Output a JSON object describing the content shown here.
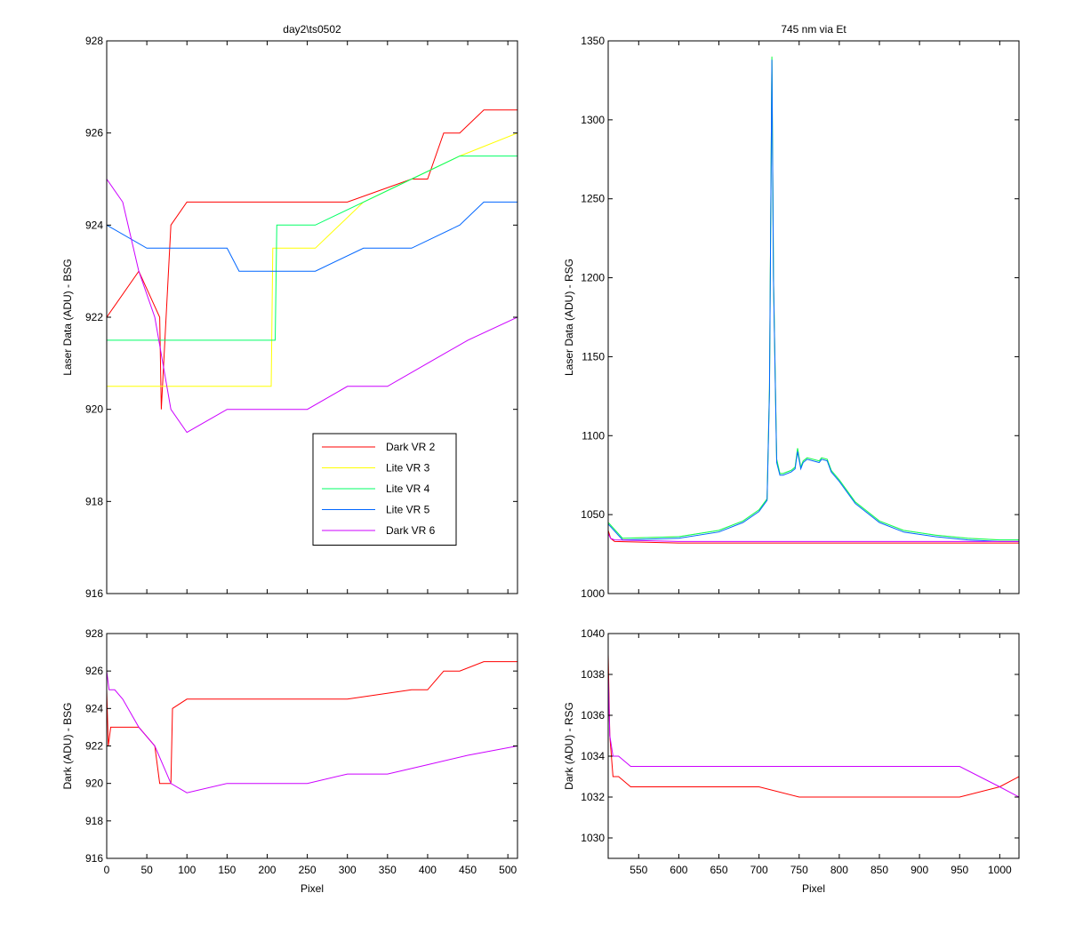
{
  "chart_data": [
    {
      "type": "line",
      "title": "day2\\ts0502",
      "xlabel": "",
      "ylabel": "Laser Data (ADU) - BSG",
      "xlim": [
        0,
        512
      ],
      "ylim": [
        916,
        928
      ],
      "xticks": [
        0,
        50,
        100,
        150,
        200,
        250,
        300,
        350,
        400,
        450,
        500
      ],
      "yticks": [
        916,
        918,
        920,
        922,
        924,
        926,
        928
      ],
      "show_xtick_labels": false,
      "legend": {
        "placement": "lower-center"
      },
      "series": [
        {
          "name": "Dark VR 2",
          "color": "#ff0000",
          "x": [
            0,
            40,
            66,
            68,
            80,
            100,
            200,
            300,
            380,
            400,
            420,
            440,
            470,
            512
          ],
          "y": [
            922,
            923,
            922,
            920,
            924,
            924.5,
            924.5,
            924.5,
            925,
            925,
            926,
            926,
            926.5,
            926.5
          ]
        },
        {
          "name": "Lite VR 3",
          "color": "#ffff00",
          "x": [
            0,
            60,
            100,
            150,
            205,
            207,
            260,
            320,
            380,
            440,
            512
          ],
          "y": [
            920.5,
            920.5,
            920.5,
            920.5,
            920.5,
            923.5,
            923.5,
            924.5,
            925,
            925.5,
            926
          ]
        },
        {
          "name": "Lite VR 4",
          "color": "#00ff66",
          "x": [
            0,
            60,
            100,
            150,
            210,
            212,
            260,
            320,
            380,
            440,
            512
          ],
          "y": [
            921.5,
            921.5,
            921.5,
            921.5,
            921.5,
            924,
            924,
            924.5,
            925,
            925.5,
            925.5
          ]
        },
        {
          "name": "Lite VR 5",
          "color": "#0066ff",
          "x": [
            0,
            50,
            90,
            150,
            165,
            210,
            260,
            320,
            380,
            440,
            470,
            512
          ],
          "y": [
            924,
            923.5,
            923.5,
            923.5,
            923,
            923,
            923,
            923.5,
            923.5,
            924,
            924.5,
            924.5
          ]
        },
        {
          "name": "Dark VR 6",
          "color": "#cc00ff",
          "x": [
            0,
            20,
            40,
            60,
            80,
            100,
            150,
            200,
            250,
            300,
            350,
            400,
            450,
            512
          ],
          "y": [
            925,
            924.5,
            923,
            922,
            920,
            919.5,
            920,
            920,
            920,
            920.5,
            920.5,
            921,
            921.5,
            922
          ]
        }
      ]
    },
    {
      "type": "line",
      "title": "745 nm via Et",
      "xlabel": "",
      "ylabel": "Laser Data (ADU) - RSG",
      "xlim": [
        512,
        1024
      ],
      "ylim": [
        1000,
        1350
      ],
      "xticks": [
        550,
        600,
        650,
        700,
        750,
        800,
        850,
        900,
        950,
        1000
      ],
      "yticks": [
        1000,
        1050,
        1100,
        1150,
        1200,
        1250,
        1300,
        1350
      ],
      "show_xtick_labels": false,
      "series": [
        {
          "name": "Dark VR 2",
          "color": "#ff0000",
          "x": [
            512,
            515,
            520,
            600,
            700,
            800,
            900,
            1000,
            1024
          ],
          "y": [
            1040,
            1035,
            1033,
            1032,
            1032,
            1032,
            1032,
            1032,
            1032
          ]
        },
        {
          "name": "Lite VR 3",
          "color": "#ffff00",
          "x": [
            512,
            530,
            600,
            650,
            680,
            700,
            710,
            713,
            716,
            718,
            722,
            726,
            730,
            740,
            745,
            748,
            752,
            755,
            760,
            775,
            778,
            785,
            790,
            800,
            820,
            850,
            880,
            920,
            960,
            1000,
            1024
          ],
          "y": [
            1045,
            1035,
            1036,
            1040,
            1046,
            1053,
            1060,
            1130,
            1340,
            1200,
            1085,
            1076,
            1076,
            1078,
            1080,
            1092,
            1080,
            1084,
            1086,
            1084,
            1086,
            1085,
            1078,
            1072,
            1058,
            1046,
            1040,
            1037,
            1035,
            1034,
            1034
          ]
        },
        {
          "name": "Lite VR 4",
          "color": "#00ff66",
          "x": [
            512,
            530,
            600,
            650,
            680,
            700,
            710,
            713,
            716,
            718,
            722,
            726,
            730,
            740,
            745,
            748,
            752,
            755,
            760,
            775,
            778,
            785,
            790,
            800,
            820,
            850,
            880,
            920,
            960,
            1000,
            1024
          ],
          "y": [
            1045,
            1035,
            1036,
            1040,
            1046,
            1053,
            1060,
            1130,
            1340,
            1200,
            1085,
            1076,
            1076,
            1078,
            1080,
            1092,
            1080,
            1084,
            1086,
            1084,
            1086,
            1085,
            1078,
            1072,
            1058,
            1046,
            1040,
            1037,
            1035,
            1034,
            1034
          ]
        },
        {
          "name": "Lite VR 5",
          "color": "#0066ff",
          "x": [
            512,
            530,
            600,
            650,
            680,
            700,
            710,
            713,
            716,
            718,
            722,
            726,
            730,
            740,
            745,
            748,
            752,
            755,
            760,
            775,
            778,
            785,
            790,
            800,
            820,
            850,
            880,
            920,
            960,
            1000,
            1024
          ],
          "y": [
            1044,
            1034,
            1035,
            1039,
            1045,
            1052,
            1059,
            1128,
            1338,
            1198,
            1083,
            1075,
            1075,
            1077,
            1079,
            1090,
            1079,
            1083,
            1085,
            1083,
            1085,
            1084,
            1077,
            1071,
            1057,
            1045,
            1039,
            1036,
            1034,
            1033,
            1033
          ]
        },
        {
          "name": "Dark VR 6",
          "color": "#cc00ff",
          "x": [
            512,
            515,
            520,
            600,
            700,
            800,
            900,
            1000,
            1024
          ],
          "y": [
            1038,
            1035,
            1034,
            1033,
            1033,
            1033,
            1033,
            1033,
            1033
          ]
        }
      ]
    },
    {
      "type": "line",
      "title": "",
      "xlabel": "Pixel",
      "ylabel": "Dark (ADU) - BSG",
      "xlim": [
        0,
        512
      ],
      "ylim": [
        916,
        928
      ],
      "xticks": [
        0,
        50,
        100,
        150,
        200,
        250,
        300,
        350,
        400,
        450,
        500
      ],
      "yticks": [
        916,
        918,
        920,
        922,
        924,
        926,
        928
      ],
      "show_xtick_labels": true,
      "series": [
        {
          "name": "Dark VR 2",
          "color": "#ff0000",
          "x": [
            0,
            2,
            5,
            20,
            40,
            60,
            66,
            68,
            80,
            82,
            100,
            200,
            300,
            380,
            400,
            420,
            440,
            470,
            512
          ],
          "y": [
            925,
            922,
            923,
            923,
            923,
            922,
            920,
            920,
            920,
            924,
            924.5,
            924.5,
            924.5,
            925,
            925,
            926,
            926,
            926.5,
            926.5
          ]
        },
        {
          "name": "Dark VR 6",
          "color": "#cc00ff",
          "x": [
            0,
            3,
            10,
            20,
            40,
            60,
            80,
            100,
            150,
            200,
            250,
            300,
            350,
            400,
            450,
            512
          ],
          "y": [
            926,
            925,
            925,
            924.5,
            923,
            922,
            920,
            919.5,
            920,
            920,
            920,
            920.5,
            920.5,
            921,
            921.5,
            922
          ]
        }
      ]
    },
    {
      "type": "line",
      "title": "",
      "xlabel": "Pixel",
      "ylabel": "Dark (ADU) - RSG",
      "xlim": [
        512,
        1024
      ],
      "ylim": [
        1029,
        1040
      ],
      "xticks": [
        550,
        600,
        650,
        700,
        750,
        800,
        850,
        900,
        950,
        1000
      ],
      "yticks": [
        1030,
        1032,
        1034,
        1036,
        1038,
        1040
      ],
      "show_xtick_labels": true,
      "series": [
        {
          "name": "Dark VR 2",
          "color": "#ff0000",
          "x": [
            512,
            514,
            518,
            525,
            540,
            560,
            600,
            650,
            700,
            750,
            800,
            850,
            900,
            950,
            1000,
            1024
          ],
          "y": [
            1039,
            1035,
            1033,
            1033,
            1032.5,
            1032.5,
            1032.5,
            1032.5,
            1032.5,
            1032,
            1032,
            1032,
            1032,
            1032,
            1032.5,
            1033
          ]
        },
        {
          "name": "Dark VR 6",
          "color": "#cc00ff",
          "x": [
            512,
            514,
            518,
            525,
            540,
            560,
            600,
            650,
            700,
            750,
            800,
            850,
            900,
            950,
            1000,
            1024
          ],
          "y": [
            1038,
            1035,
            1034,
            1034,
            1033.5,
            1033.5,
            1033.5,
            1033.5,
            1033.5,
            1033.5,
            1033.5,
            1033.5,
            1033.5,
            1033.5,
            1032.5,
            1032
          ]
        }
      ]
    }
  ]
}
